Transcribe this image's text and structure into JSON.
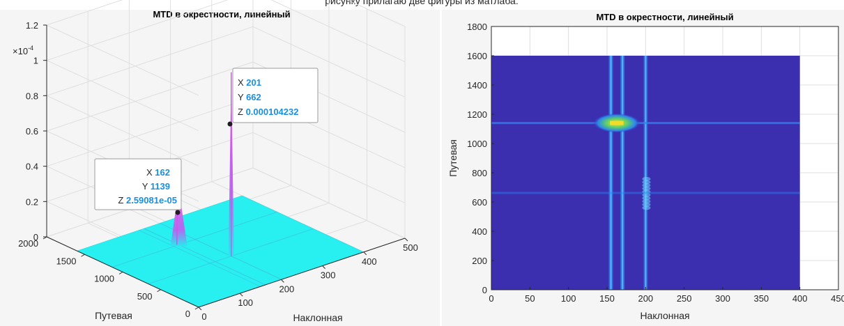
{
  "top_clipped_text": "рисунку прилагаю две фигуры из матлаба:",
  "colors": {
    "surface": "#28f0f0",
    "peak": "#d255e8",
    "heat_low": "#3b2fb0",
    "heat_mid": "#2a86ee",
    "heat_high": "#f2dc2a",
    "tip_value": "#1a8fe0"
  },
  "chart_data": [
    {
      "type": "surface3d",
      "title": "MTD в окрестности, линейный",
      "xlabel": "Наклонная",
      "ylabel": "Путевая",
      "zlabel": "",
      "z_exponent": "×10^-4",
      "z_exponent_base": "×10",
      "z_exponent_power": "-4",
      "xlim": [
        0,
        500
      ],
      "ylim": [
        0,
        2000
      ],
      "zlim": [
        0,
        1.2
      ],
      "x_ticks": [
        "0",
        "100",
        "200",
        "300",
        "400",
        "500"
      ],
      "y_ticks": [
        "0",
        "500",
        "1000",
        "1500",
        "2000"
      ],
      "z_ticks": [
        "0",
        "0.2",
        "0.4",
        "0.6",
        "0.8",
        "1",
        "1.2"
      ],
      "grid": true,
      "data_range": {
        "x": [
          0,
          400
        ],
        "y": [
          0,
          1600
        ]
      },
      "peaks": [
        {
          "x": 201,
          "y": 662,
          "z": 0.000104232
        },
        {
          "x": 162,
          "y": 1139,
          "z": 2.59081e-05
        }
      ],
      "datatips": [
        {
          "X": "201",
          "Y": "662",
          "Z": "0.000104232"
        },
        {
          "X": "162",
          "Y": "1139",
          "Z": "2.59081e-05"
        }
      ]
    },
    {
      "type": "heatmap",
      "title": "MTD в окрестности, линейный",
      "xlabel": "Наклонная",
      "ylabel": "Путевая",
      "xlim": [
        0,
        450
      ],
      "ylim": [
        0,
        1800
      ],
      "x_ticks": [
        "0",
        "50",
        "100",
        "150",
        "200",
        "250",
        "300",
        "350",
        "400",
        "450"
      ],
      "y_ticks": [
        "0",
        "200",
        "400",
        "600",
        "800",
        "1000",
        "1200",
        "1400",
        "1600",
        "1800"
      ],
      "grid": true,
      "data_extent": {
        "x": [
          0,
          400
        ],
        "y": [
          0,
          1600
        ]
      },
      "hot_spot": {
        "x": [
          150,
          175
        ],
        "y": [
          1130,
          1150
        ]
      },
      "vertical_streaks": [
        155,
        170,
        200
      ],
      "horizontal_streaks": [
        1140,
        662
      ]
    }
  ]
}
